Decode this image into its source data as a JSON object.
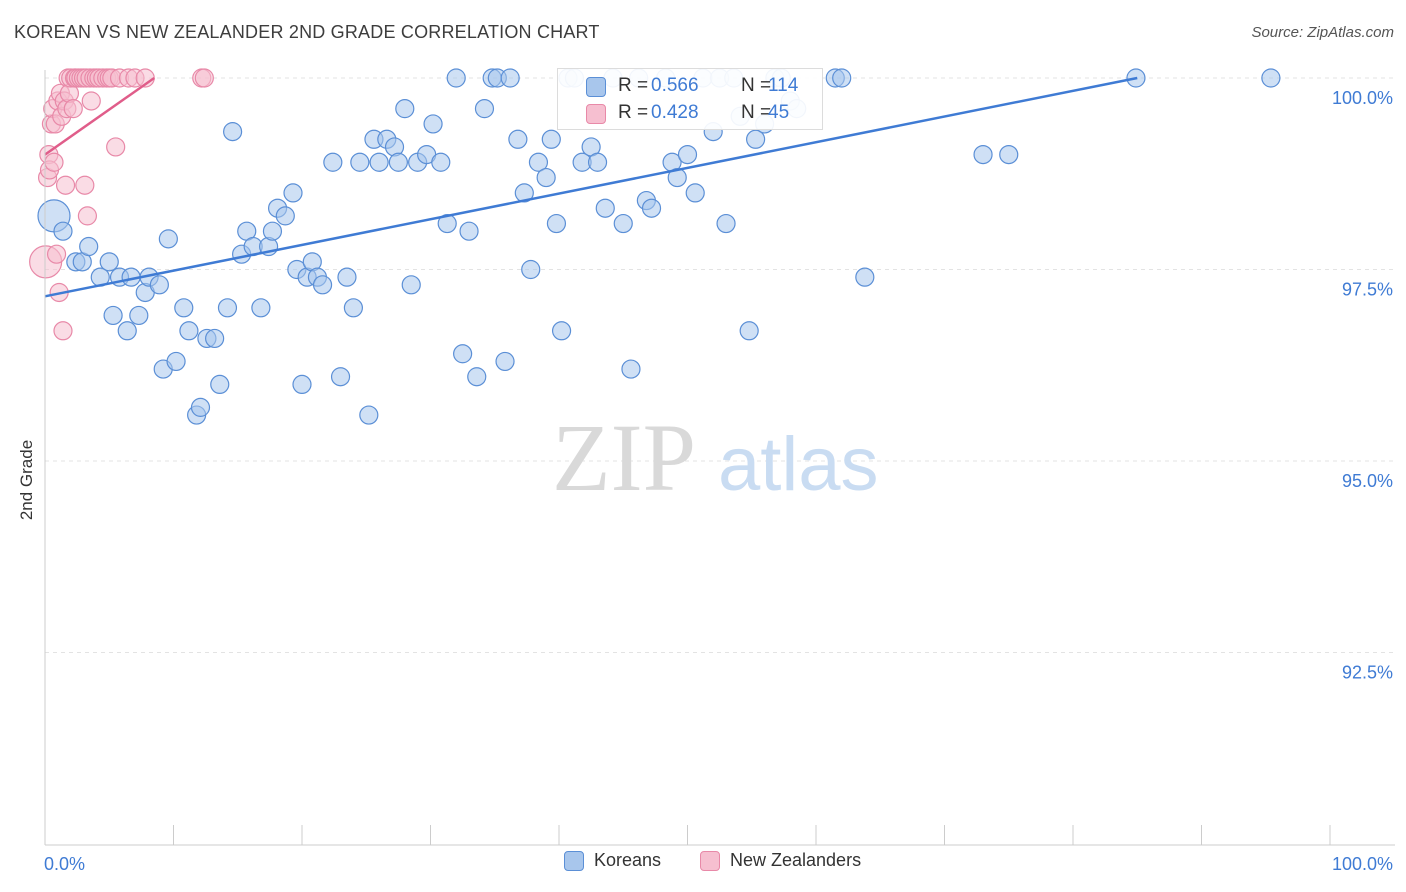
{
  "title": "KOREAN VS NEW ZEALANDER 2ND GRADE CORRELATION CHART",
  "source": "Source: ZipAtlas.com",
  "watermark": {
    "zip": "ZIP",
    "atlas": "atlas"
  },
  "legend_box": {
    "rows": [
      {
        "r_label": "R = ",
        "r_value": "0.566",
        "n_label": "N = ",
        "n_value": "114"
      },
      {
        "r_label": "R = ",
        "r_value": "0.428",
        "n_label": "N = ",
        "n_value": "45"
      }
    ]
  },
  "legend_bottom": {
    "items": [
      {
        "label": "Koreans"
      },
      {
        "label": "New Zealanders"
      }
    ]
  },
  "colors": {
    "koreans_fill": "#a8c6ec",
    "koreans_stroke": "#5b8fd6",
    "koreans_line": "#3f7bd4",
    "nz_fill": "#f6bfd0",
    "nz_stroke": "#e889a8",
    "nz_line": "#e05d8a",
    "value_text": "#3f7bd4",
    "grid": "#e3e3e3",
    "axis": "#cccccc"
  },
  "chart_data": {
    "type": "scatter",
    "title": "KOREAN VS NEW ZEALANDER 2ND GRADE CORRELATION CHART",
    "xlabel": "",
    "ylabel": "2nd Grade",
    "xlim": [
      0,
      100
    ],
    "ylim": [
      90.2,
      100.2
    ],
    "x_tick_labels": [
      "0.0%",
      "100.0%"
    ],
    "y_ticks": [
      92.5,
      95.0,
      97.5,
      100.0
    ],
    "y_tick_labels": [
      "92.5%",
      "95.0%",
      "97.5%",
      "100.0%"
    ],
    "grid": true,
    "series": [
      {
        "name": "Koreans",
        "r": 0.566,
        "n": 114,
        "trend": {
          "x": [
            0,
            85
          ],
          "y": [
            97.15,
            100.0
          ]
        },
        "points": [
          [
            0.7,
            98.2
          ],
          [
            1.4,
            98.0
          ],
          [
            2.4,
            97.6
          ],
          [
            2.9,
            97.6
          ],
          [
            3.4,
            97.8
          ],
          [
            4.3,
            97.4
          ],
          [
            5.0,
            97.6
          ],
          [
            5.3,
            96.9
          ],
          [
            5.8,
            97.4
          ],
          [
            6.4,
            96.7
          ],
          [
            6.7,
            97.4
          ],
          [
            7.3,
            96.9
          ],
          [
            7.8,
            97.2
          ],
          [
            8.1,
            97.4
          ],
          [
            8.9,
            97.3
          ],
          [
            9.2,
            96.2
          ],
          [
            9.6,
            97.9
          ],
          [
            10.2,
            96.3
          ],
          [
            10.8,
            97.0
          ],
          [
            11.2,
            96.7
          ],
          [
            11.8,
            95.6
          ],
          [
            12.1,
            95.7
          ],
          [
            12.6,
            96.6
          ],
          [
            13.2,
            96.6
          ],
          [
            13.6,
            96.0
          ],
          [
            14.2,
            97.0
          ],
          [
            14.6,
            99.3
          ],
          [
            15.3,
            97.7
          ],
          [
            15.7,
            98.0
          ],
          [
            16.2,
            97.8
          ],
          [
            16.8,
            97.0
          ],
          [
            17.4,
            97.8
          ],
          [
            17.7,
            98.0
          ],
          [
            18.1,
            98.3
          ],
          [
            18.7,
            98.2
          ],
          [
            19.3,
            98.5
          ],
          [
            19.6,
            97.5
          ],
          [
            20.0,
            96.0
          ],
          [
            20.4,
            97.4
          ],
          [
            20.8,
            97.6
          ],
          [
            21.2,
            97.4
          ],
          [
            21.6,
            97.3
          ],
          [
            22.4,
            98.9
          ],
          [
            23.0,
            96.1
          ],
          [
            23.5,
            97.4
          ],
          [
            24.0,
            97.0
          ],
          [
            24.5,
            98.9
          ],
          [
            25.2,
            95.6
          ],
          [
            25.6,
            99.2
          ],
          [
            26.0,
            98.9
          ],
          [
            26.6,
            99.2
          ],
          [
            27.2,
            99.1
          ],
          [
            27.5,
            98.9
          ],
          [
            28.0,
            99.6
          ],
          [
            28.5,
            97.3
          ],
          [
            29.0,
            98.9
          ],
          [
            29.7,
            99.0
          ],
          [
            30.2,
            99.4
          ],
          [
            30.8,
            98.9
          ],
          [
            31.3,
            98.1
          ],
          [
            32.0,
            100.0
          ],
          [
            32.5,
            96.4
          ],
          [
            33.0,
            98.0
          ],
          [
            33.6,
            96.1
          ],
          [
            34.2,
            99.6
          ],
          [
            34.8,
            100.0
          ],
          [
            35.2,
            100.0
          ],
          [
            35.8,
            96.3
          ],
          [
            36.2,
            100.0
          ],
          [
            36.8,
            99.2
          ],
          [
            37.3,
            98.5
          ],
          [
            37.8,
            97.5
          ],
          [
            38.4,
            98.9
          ],
          [
            39.0,
            98.7
          ],
          [
            39.4,
            99.2
          ],
          [
            39.8,
            98.1
          ],
          [
            40.2,
            96.7
          ],
          [
            40.7,
            100.0
          ],
          [
            41.2,
            100.0
          ],
          [
            41.8,
            98.9
          ],
          [
            42.5,
            99.1
          ],
          [
            43.0,
            98.9
          ],
          [
            43.6,
            98.3
          ],
          [
            44.2,
            100.0
          ],
          [
            45.0,
            98.1
          ],
          [
            45.6,
            96.2
          ],
          [
            46.2,
            100.0
          ],
          [
            46.8,
            98.4
          ],
          [
            47.2,
            98.3
          ],
          [
            48.3,
            100.0
          ],
          [
            48.8,
            98.9
          ],
          [
            49.2,
            98.7
          ],
          [
            50.0,
            99.0
          ],
          [
            50.6,
            98.5
          ],
          [
            51.2,
            100.0
          ],
          [
            52.0,
            99.3
          ],
          [
            52.5,
            100.0
          ],
          [
            53.0,
            98.1
          ],
          [
            53.6,
            100.0
          ],
          [
            54.1,
            99.5
          ],
          [
            54.8,
            96.7
          ],
          [
            55.3,
            99.2
          ],
          [
            56.0,
            99.4
          ],
          [
            56.8,
            100.0
          ],
          [
            57.3,
            100.0
          ],
          [
            58.0,
            99.7
          ],
          [
            58.5,
            99.6
          ],
          [
            61.5,
            100.0
          ],
          [
            62.0,
            100.0
          ],
          [
            63.8,
            97.4
          ],
          [
            73.0,
            99.0
          ],
          [
            75.0,
            99.0
          ],
          [
            84.9,
            100.0
          ],
          [
            95.4,
            100.0
          ]
        ]
      },
      {
        "name": "New Zealanders",
        "r": 0.428,
        "n": 45,
        "trend": {
          "x": [
            0,
            8.5
          ],
          "y": [
            99.0,
            100.0
          ]
        },
        "points": [
          [
            0.05,
            97.6
          ],
          [
            0.2,
            98.7
          ],
          [
            0.3,
            99.0
          ],
          [
            0.35,
            98.8
          ],
          [
            0.5,
            99.4
          ],
          [
            0.6,
            99.6
          ],
          [
            0.7,
            98.9
          ],
          [
            0.8,
            99.4
          ],
          [
            0.9,
            97.7
          ],
          [
            1.0,
            99.7
          ],
          [
            1.1,
            97.2
          ],
          [
            1.2,
            99.8
          ],
          [
            1.3,
            99.5
          ],
          [
            1.4,
            96.7
          ],
          [
            1.5,
            99.7
          ],
          [
            1.6,
            98.6
          ],
          [
            1.7,
            99.6
          ],
          [
            1.8,
            100.0
          ],
          [
            1.9,
            99.8
          ],
          [
            2.0,
            100.0
          ],
          [
            2.2,
            99.6
          ],
          [
            2.3,
            100.0
          ],
          [
            2.4,
            100.0
          ],
          [
            2.6,
            100.0
          ],
          [
            2.8,
            100.0
          ],
          [
            3.0,
            100.0
          ],
          [
            3.1,
            98.6
          ],
          [
            3.2,
            100.0
          ],
          [
            3.3,
            98.2
          ],
          [
            3.5,
            100.0
          ],
          [
            3.6,
            99.7
          ],
          [
            3.8,
            100.0
          ],
          [
            4.0,
            100.0
          ],
          [
            4.2,
            100.0
          ],
          [
            4.5,
            100.0
          ],
          [
            4.8,
            100.0
          ],
          [
            5.0,
            100.0
          ],
          [
            5.2,
            100.0
          ],
          [
            5.5,
            99.1
          ],
          [
            5.8,
            100.0
          ],
          [
            6.5,
            100.0
          ],
          [
            7.0,
            100.0
          ],
          [
            7.8,
            100.0
          ],
          [
            12.2,
            100.0
          ],
          [
            12.4,
            100.0
          ]
        ]
      }
    ]
  }
}
